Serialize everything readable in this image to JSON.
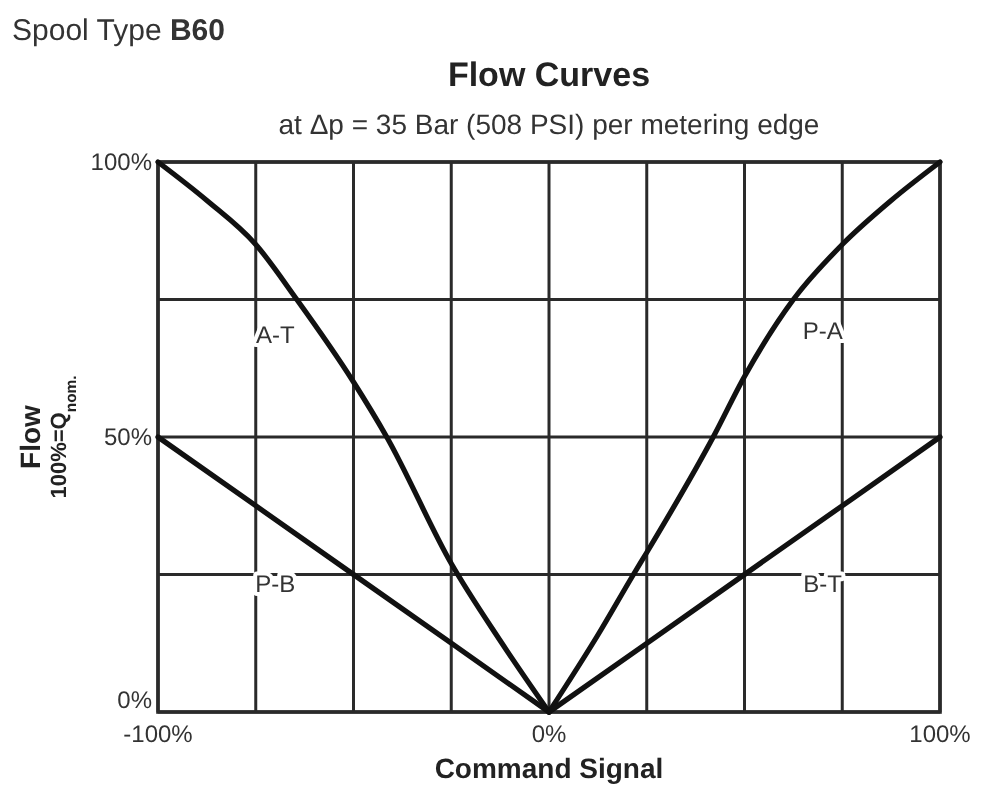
{
  "chart_data": {
    "type": "line",
    "title": "Flow Curves",
    "subtitle": "at Δp = 35 Bar (508 PSI) per metering edge",
    "xlabel": "Command Signal",
    "ylabel": "Flow\n100%=Q$_{nom.}$",
    "annotations": [
      "Spool Type B60"
    ],
    "xlim": [
      -100,
      100
    ],
    "ylim": [
      0,
      100
    ],
    "xticks": [
      {
        "value": -100,
        "label": "-100%"
      },
      {
        "value": -75,
        "label": null
      },
      {
        "value": -50,
        "label": null
      },
      {
        "value": -25,
        "label": null
      },
      {
        "value": 0,
        "label": "0%"
      },
      {
        "value": 25,
        "label": null
      },
      {
        "value": 50,
        "label": null
      },
      {
        "value": 75,
        "label": null
      },
      {
        "value": 100,
        "label": "100%"
      }
    ],
    "yticks": [
      {
        "value": 0,
        "label": "0%"
      },
      {
        "value": 25,
        "label": null
      },
      {
        "value": 50,
        "label": "50%"
      },
      {
        "value": 75,
        "label": null
      },
      {
        "value": 100,
        "label": "100%"
      }
    ],
    "grid": true,
    "marker": "none",
    "line_style": "solid",
    "series": [
      {
        "name": "A-T",
        "color": "#111111",
        "x": [
          -100,
          -87.5,
          -75,
          -64.5,
          -50,
          -41.5,
          -25,
          -12.5,
          0
        ],
        "values": [
          100,
          93,
          85,
          75,
          60,
          50,
          27,
          13,
          0
        ]
      },
      {
        "name": "P-B",
        "color": "#111111",
        "x": [
          -100,
          -50,
          0
        ],
        "values": [
          50,
          25,
          0
        ]
      },
      {
        "name": "P-A",
        "color": "#111111",
        "x": [
          0,
          12.5,
          21.6,
          25,
          42,
          50,
          62.5,
          75,
          87.5,
          100
        ],
        "values": [
          0,
          14,
          25,
          29,
          50,
          61,
          75,
          85,
          93,
          100
        ]
      },
      {
        "name": "B-T",
        "color": "#111111",
        "x": [
          0,
          50,
          100
        ],
        "values": [
          0,
          25,
          50
        ]
      }
    ]
  }
}
